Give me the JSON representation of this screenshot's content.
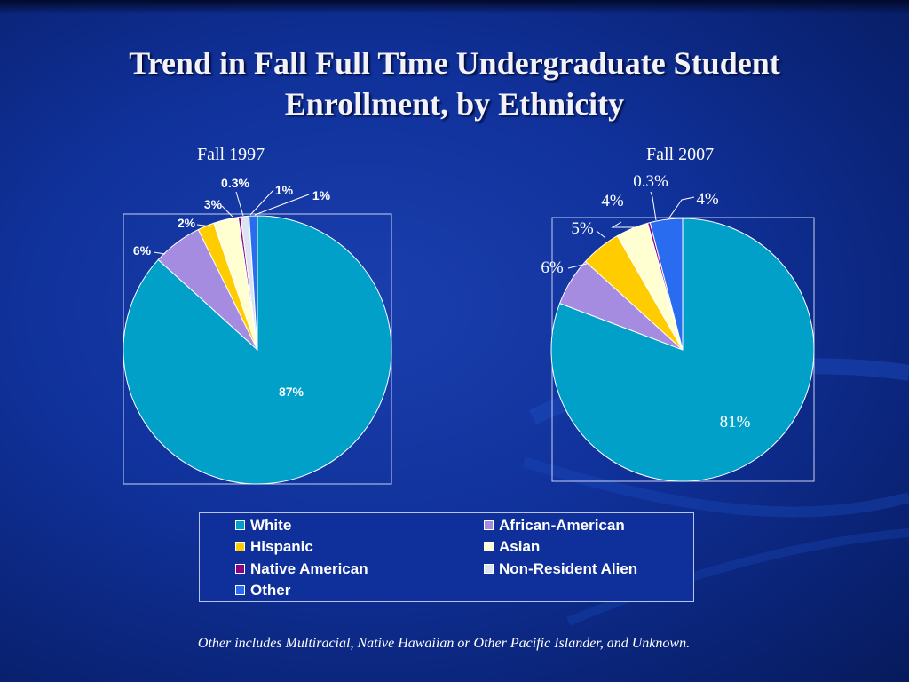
{
  "slide": {
    "title_line1": "Trend in Fall Full Time Undergraduate Student",
    "title_line2": "Enrollment, by Ethnicity",
    "footnote": "Other includes Multiracial, Native Hawaiian or Other Pacific Islander, and Unknown."
  },
  "legend": {
    "items": [
      {
        "label": "White",
        "color": "#00a0c8"
      },
      {
        "label": "African-American",
        "color": "#a58ce0"
      },
      {
        "label": "Hispanic",
        "color": "#ffcc00"
      },
      {
        "label": "Asian",
        "color": "#ffffd2"
      },
      {
        "label": "Native American",
        "color": "#8b0080"
      },
      {
        "label": "Non-Resident Alien",
        "color": "#dce4f4"
      },
      {
        "label": "Other",
        "color": "#2a6cf0"
      }
    ]
  },
  "chart_data": [
    {
      "type": "pie",
      "title": "Fall 1997",
      "categories": [
        "White",
        "African-American",
        "Hispanic",
        "Asian",
        "Native American",
        "Non-Resident Alien",
        "Other"
      ],
      "values": [
        87,
        6,
        2,
        3,
        0.3,
        1,
        1
      ],
      "labels": [
        "87%",
        "6%",
        "2%",
        "3%",
        "0.3%",
        "1%",
        "1%"
      ]
    },
    {
      "type": "pie",
      "title": "Fall 2007",
      "categories": [
        "White",
        "African-American",
        "Hispanic",
        "Asian",
        "Native American",
        "Non-Resident Alien",
        "Other"
      ],
      "values": [
        81,
        6,
        5,
        4,
        0.3,
        0,
        4
      ],
      "labels": [
        "81%",
        "6%",
        "5%",
        "4%",
        "0.3%",
        "",
        "4%"
      ]
    }
  ]
}
